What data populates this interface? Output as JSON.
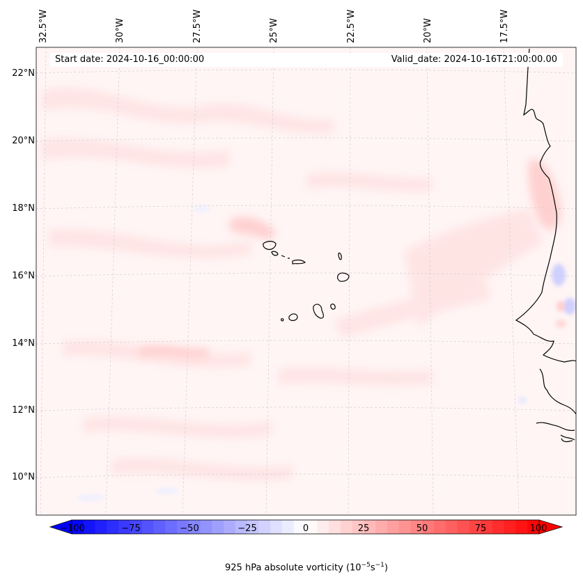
{
  "header": {
    "start_date": "Start date: 2024-10-16_00:00:00",
    "valid_date": "Valid_date: 2024-10-16T21:00:00.00"
  },
  "axes": {
    "longitudes": [
      "32.5°W",
      "30°W",
      "27.5°W",
      "25°W",
      "22.5°W",
      "20°W",
      "17.5°W"
    ],
    "latitudes": [
      "22°N",
      "20°N",
      "18°N",
      "16°N",
      "14°N",
      "12°N",
      "10°N"
    ]
  },
  "colorbar": {
    "ticks": [
      "−100",
      "−75",
      "−50",
      "−25",
      "0",
      "25",
      "50",
      "75",
      "100"
    ],
    "title_main": "925 hPa absolute vorticity (10",
    "title_sup1": "−5",
    "title_mid": "s",
    "title_sup2": "−1",
    "title_end": ")",
    "min_color": "#0000ff",
    "mid_color": "#ffffff",
    "max_color": "#ff0000"
  }
}
